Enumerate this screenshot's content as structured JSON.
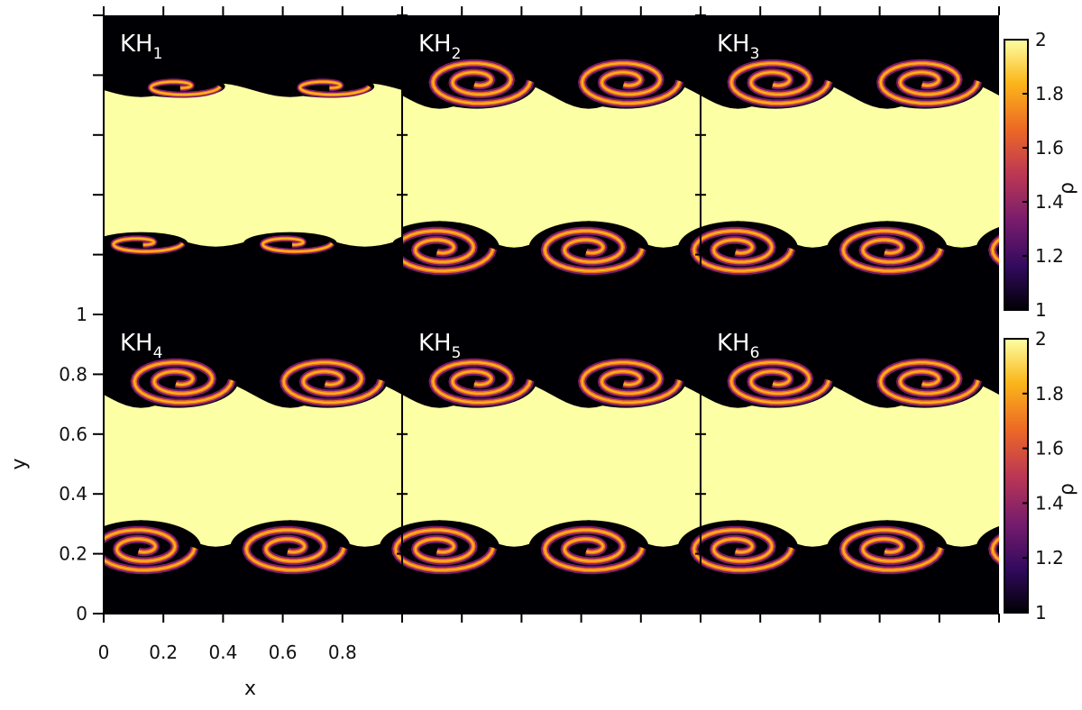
{
  "chart_data": {
    "type": "heatmap",
    "panels": [
      {
        "label": "KH",
        "sub": "1",
        "row": 0,
        "col": 0
      },
      {
        "label": "KH",
        "sub": "2",
        "row": 0,
        "col": 1
      },
      {
        "label": "KH",
        "sub": "3",
        "row": 0,
        "col": 2
      },
      {
        "label": "KH",
        "sub": "4",
        "row": 1,
        "col": 0
      },
      {
        "label": "KH",
        "sub": "5",
        "row": 1,
        "col": 1
      },
      {
        "label": "KH",
        "sub": "6",
        "row": 1,
        "col": 2
      }
    ],
    "xlabel": "x",
    "ylabel": "y",
    "xlim": [
      0,
      1
    ],
    "ylim": [
      0,
      1
    ],
    "x_tick_labels": [
      "0",
      "0.2",
      "0.4",
      "0.6",
      "0.8"
    ],
    "x_tick_values": [
      0,
      0.2,
      0.4,
      0.6,
      0.8
    ],
    "y_tick_labels": [
      "0",
      "0.2",
      "0.4",
      "0.6",
      "0.8",
      "1"
    ],
    "y_tick_values": [
      0,
      0.2,
      0.4,
      0.6,
      0.8,
      1
    ],
    "colorbar": {
      "label": "ρ",
      "range": [
        1,
        2
      ],
      "tick_labels": [
        "1",
        "1.2",
        "1.4",
        "1.6",
        "1.8",
        "2"
      ],
      "tick_values": [
        1,
        1.2,
        1.4,
        1.6,
        1.8,
        2
      ],
      "colormap": "inferno",
      "colors": [
        "#000004",
        "#320a5e",
        "#781c6d",
        "#bc3754",
        "#ed6925",
        "#fbb61a",
        "#fcffa4"
      ]
    },
    "band": {
      "y_low": 0.25,
      "y_high": 0.75,
      "rho_inside": 2,
      "rho_outside": 1
    },
    "vortices_per_interface": 2
  }
}
